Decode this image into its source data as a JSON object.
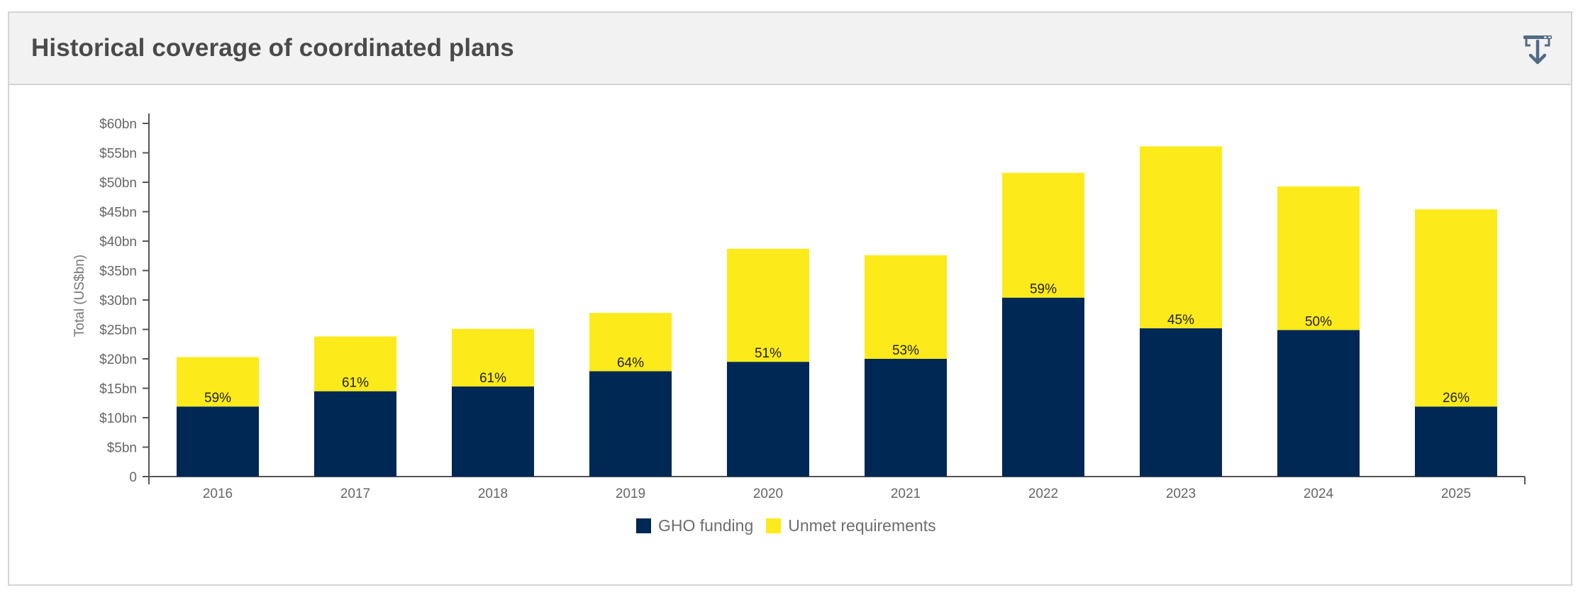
{
  "header": {
    "title": "Historical coverage of coordinated plans",
    "download_icon": "download-icon"
  },
  "colors": {
    "funding": "#002855",
    "unmet": "#fcea1a",
    "axis": "#555555",
    "header_bg": "#f2f2f2"
  },
  "chart_data": {
    "type": "bar",
    "stacked": true,
    "categories": [
      "2016",
      "2017",
      "2018",
      "2019",
      "2020",
      "2021",
      "2022",
      "2023",
      "2024",
      "2025"
    ],
    "series": [
      {
        "name": "GHO funding",
        "color": "#002855",
        "values": [
          11.9,
          14.5,
          15.3,
          17.9,
          19.5,
          20.0,
          30.4,
          25.2,
          24.9,
          11.9
        ]
      },
      {
        "name": "Unmet requirements",
        "color": "#fcea1a",
        "values": [
          8.4,
          9.3,
          9.8,
          9.9,
          19.2,
          17.6,
          21.2,
          30.9,
          24.4,
          33.5
        ]
      }
    ],
    "data_labels": [
      "59%",
      "61%",
      "61%",
      "64%",
      "51%",
      "53%",
      "59%",
      "45%",
      "50%",
      "26%"
    ],
    "ylabel": "Total (US$bn)",
    "xlabel": "",
    "ylim": [
      0,
      60
    ],
    "yticks": [
      0,
      5,
      10,
      15,
      20,
      25,
      30,
      35,
      40,
      45,
      50,
      55,
      60
    ],
    "ytick_labels": [
      "0",
      "$5bn",
      "$10bn",
      "$15bn",
      "$20bn",
      "$25bn",
      "$30bn",
      "$35bn",
      "$40bn",
      "$45bn",
      "$50bn",
      "$55bn",
      "$60bn"
    ],
    "grid": false,
    "legend_position": "bottom-center"
  }
}
